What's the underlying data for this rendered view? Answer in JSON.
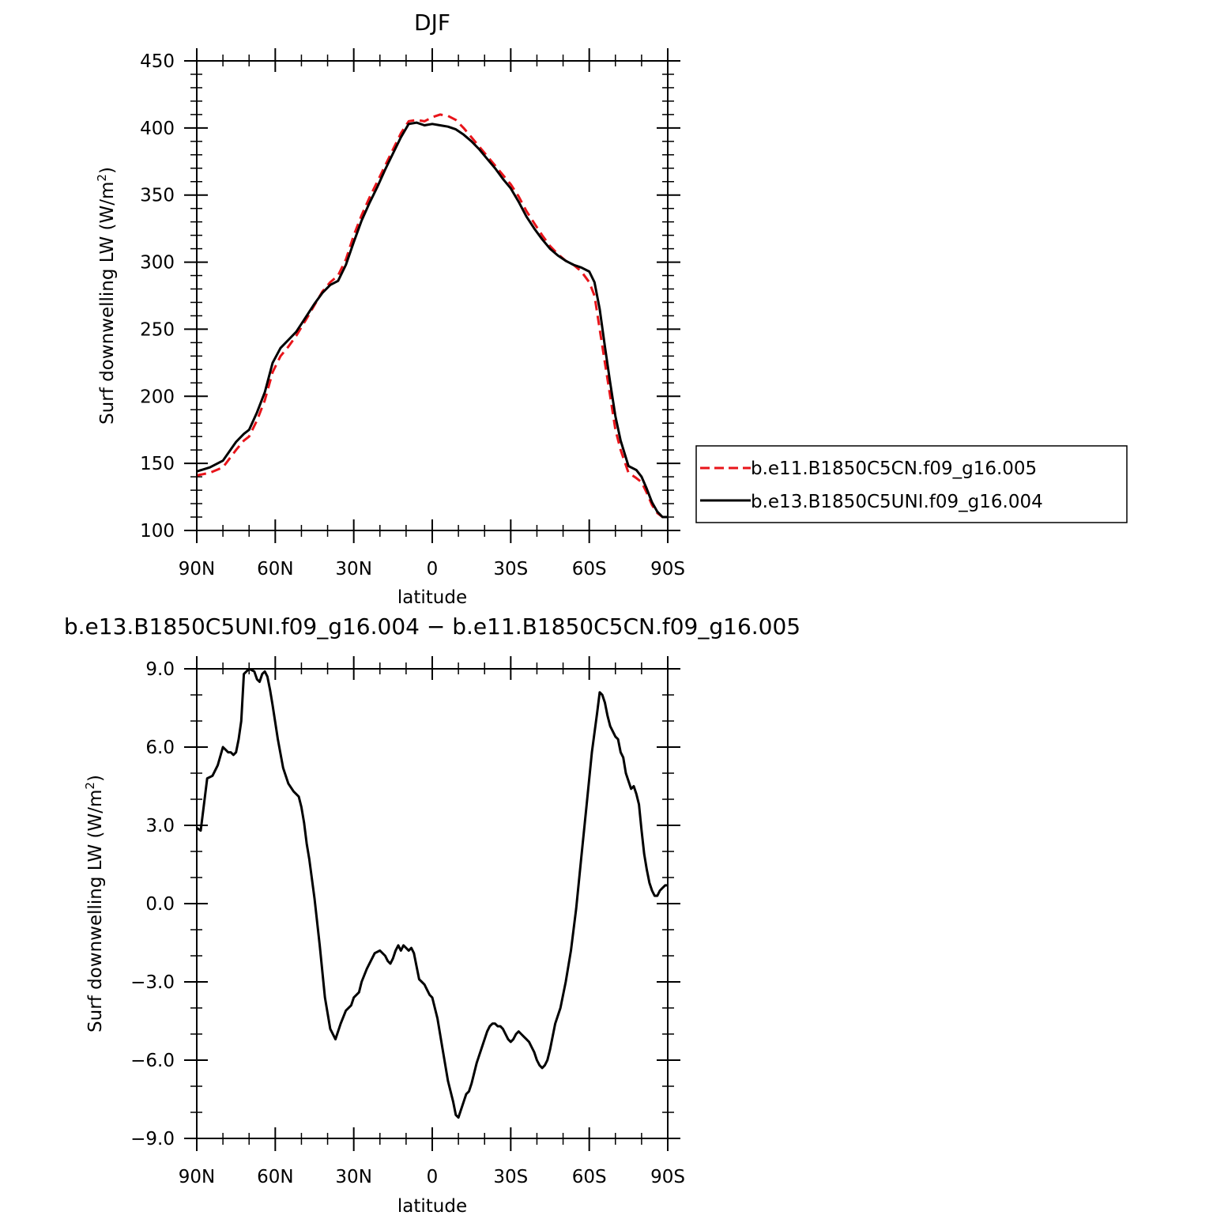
{
  "chart_data": [
    {
      "type": "line",
      "title": "DJF",
      "xlabel": "latitude",
      "ylabel": "Surf downwelling LW (W/m²)",
      "xlim": [
        90,
        -90
      ],
      "ylim": [
        100,
        450
      ],
      "x_ticks": [
        90,
        60,
        30,
        0,
        -30,
        -60,
        -90
      ],
      "x_tick_labels": [
        "90N",
        "60N",
        "30N",
        "0",
        "30S",
        "60S",
        "90S"
      ],
      "y_ticks": [
        100,
        150,
        200,
        250,
        300,
        350,
        400,
        450
      ],
      "y_tick_labels": [
        "100",
        "150",
        "200",
        "250",
        "300",
        "350",
        "400",
        "450"
      ],
      "legend_position": "right",
      "series": [
        {
          "name": "b.e11.B1850C5CN.f09_g16.005",
          "color": "#e8141a",
          "dash": "dashed",
          "x": [
            90,
            85,
            80,
            75,
            72,
            70,
            67,
            64,
            61,
            58,
            55,
            52,
            48,
            45,
            42,
            39,
            36,
            33,
            30,
            27,
            24,
            21,
            18,
            15,
            12,
            9,
            6,
            3,
            0,
            -3,
            -6,
            -9,
            -12,
            -15,
            -18,
            -21,
            -24,
            -27,
            -30,
            -33,
            -36,
            -39,
            -42,
            -45,
            -48,
            -51,
            -54,
            -57,
            -60,
            -62,
            -64,
            -66,
            -68,
            -70,
            -72,
            -75,
            -78,
            -80,
            -82,
            -84,
            -86,
            -88,
            -90
          ],
          "y": [
            141,
            143,
            147,
            160,
            167,
            170,
            182,
            197,
            218,
            230,
            237,
            245,
            258,
            268,
            278,
            285,
            290,
            302,
            320,
            335,
            348,
            360,
            372,
            384,
            396,
            405,
            406,
            405,
            408,
            410,
            409,
            406,
            400,
            393,
            386,
            379,
            372,
            365,
            358,
            349,
            338,
            329,
            320,
            312,
            306,
            301,
            298,
            293,
            285,
            275,
            250,
            225,
            200,
            175,
            160,
            143,
            139,
            136,
            128,
            119,
            113,
            110,
            110
          ]
        },
        {
          "name": "b.e13.B1850C5UNI.f09_g16.004",
          "color": "#000000",
          "dash": "solid",
          "x": [
            90,
            85,
            80,
            75,
            72,
            70,
            67,
            64,
            61,
            58,
            55,
            52,
            48,
            45,
            42,
            39,
            36,
            33,
            30,
            27,
            24,
            21,
            18,
            15,
            12,
            9,
            6,
            3,
            0,
            -3,
            -6,
            -9,
            -12,
            -15,
            -18,
            -21,
            -24,
            -27,
            -30,
            -33,
            -36,
            -39,
            -42,
            -45,
            -48,
            -51,
            -54,
            -57,
            -60,
            -62,
            -64,
            -66,
            -68,
            -70,
            -72,
            -75,
            -78,
            -80,
            -82,
            -84,
            -86,
            -88,
            -90
          ],
          "y": [
            144,
            147,
            152,
            166,
            172,
            175,
            188,
            203,
            225,
            236,
            242,
            248,
            260,
            269,
            277,
            283,
            286,
            298,
            315,
            331,
            344,
            356,
            369,
            381,
            393,
            403,
            404,
            402,
            403,
            402,
            401,
            399,
            395,
            390,
            384,
            377,
            370,
            362,
            355,
            345,
            334,
            325,
            317,
            310,
            305,
            301,
            298,
            296,
            293,
            285,
            265,
            237,
            210,
            185,
            167,
            148,
            145,
            140,
            131,
            121,
            114,
            110,
            110
          ]
        }
      ]
    },
    {
      "type": "line",
      "title": "b.e13.B1850C5UNI.f09_g16.004 − b.e11.B1850C5CN.f09_g16.005",
      "xlabel": "latitude",
      "ylabel": "Surf downwelling LW (W/m²)",
      "xlim": [
        90,
        -90
      ],
      "ylim": [
        -9,
        9
      ],
      "x_ticks": [
        90,
        60,
        30,
        0,
        -30,
        -60,
        -90
      ],
      "x_tick_labels": [
        "90N",
        "60N",
        "30N",
        "0",
        "30S",
        "60S",
        "90S"
      ],
      "y_ticks": [
        -9,
        -6,
        -3,
        0,
        3,
        6,
        9
      ],
      "y_tick_labels": [
        "−9.0",
        "−6.0",
        "−3.0",
        "0.0",
        "3.0",
        "6.0",
        "9.0"
      ],
      "series": [
        {
          "color": "#000000",
          "dash": "solid",
          "x": [
            90,
            88.5,
            86,
            84,
            82,
            80,
            78,
            77,
            76,
            75,
            74,
            73,
            72,
            70,
            68,
            67,
            66,
            65,
            64,
            63,
            62,
            61,
            59,
            57,
            55,
            53,
            51,
            50,
            49,
            48,
            47,
            45,
            43,
            41,
            39,
            37,
            35,
            33,
            31,
            30,
            28,
            27,
            25,
            24,
            22,
            20,
            18,
            17,
            16,
            15,
            14,
            13,
            12,
            11,
            10,
            9,
            8,
            7,
            6,
            5,
            4,
            3,
            2,
            1,
            0,
            -2,
            -4,
            -6,
            -8,
            -9,
            -10,
            -12,
            -13,
            -14,
            -15,
            -17,
            -19,
            -21,
            -22,
            -23,
            -24,
            -25,
            -26,
            -27,
            -28,
            -29,
            -30,
            -31,
            -32,
            -33,
            -34,
            -35,
            -36,
            -37,
            -38,
            -39,
            -40,
            -41,
            -42,
            -43,
            -44,
            -45,
            -47,
            -49,
            -51,
            -53,
            -55,
            -57,
            -59,
            -61,
            -63,
            -64,
            -65,
            -66,
            -67,
            -68,
            -69,
            -70,
            -71,
            -72,
            -73,
            -74,
            -75,
            -76,
            -77,
            -78,
            -79,
            -80,
            -81,
            -82,
            -83,
            -84,
            -85,
            -86,
            -87,
            -88,
            -89,
            -90
          ],
          "y": [
            2.9,
            2.8,
            4.8,
            4.9,
            5.3,
            6.0,
            5.8,
            5.8,
            5.7,
            5.8,
            6.3,
            7.0,
            8.8,
            9.0,
            8.9,
            8.6,
            8.5,
            8.8,
            8.9,
            8.7,
            8.2,
            7.6,
            6.3,
            5.2,
            4.6,
            4.3,
            4.1,
            3.7,
            3.1,
            2.3,
            1.7,
            0.2,
            -1.6,
            -3.6,
            -4.8,
            -5.2,
            -4.6,
            -4.1,
            -3.9,
            -3.6,
            -3.4,
            -3.0,
            -2.5,
            -2.3,
            -1.9,
            -1.8,
            -2.0,
            -2.2,
            -2.3,
            -2.1,
            -1.8,
            -1.6,
            -1.8,
            -1.6,
            -1.7,
            -1.8,
            -1.7,
            -1.9,
            -2.4,
            -2.9,
            -3.0,
            -3.1,
            -3.3,
            -3.5,
            -3.6,
            -4.4,
            -5.6,
            -6.8,
            -7.6,
            -8.1,
            -8.2,
            -7.6,
            -7.3,
            -7.2,
            -6.9,
            -6.1,
            -5.5,
            -4.9,
            -4.7,
            -4.6,
            -4.6,
            -4.7,
            -4.7,
            -4.8,
            -5.0,
            -5.2,
            -5.3,
            -5.2,
            -5.0,
            -4.9,
            -5.0,
            -5.1,
            -5.2,
            -5.3,
            -5.5,
            -5.7,
            -6.0,
            -6.2,
            -6.3,
            -6.2,
            -6.0,
            -5.6,
            -4.6,
            -4.0,
            -3.0,
            -1.8,
            -0.2,
            1.8,
            3.8,
            5.8,
            7.3,
            8.1,
            8.0,
            7.7,
            7.2,
            6.8,
            6.6,
            6.4,
            6.3,
            5.8,
            5.6,
            5.0,
            4.7,
            4.4,
            4.5,
            4.2,
            3.8,
            2.8,
            1.9,
            1.3,
            0.8,
            0.5,
            0.3,
            0.3,
            0.5,
            0.6,
            0.7,
            0.7
          ]
        }
      ]
    }
  ]
}
